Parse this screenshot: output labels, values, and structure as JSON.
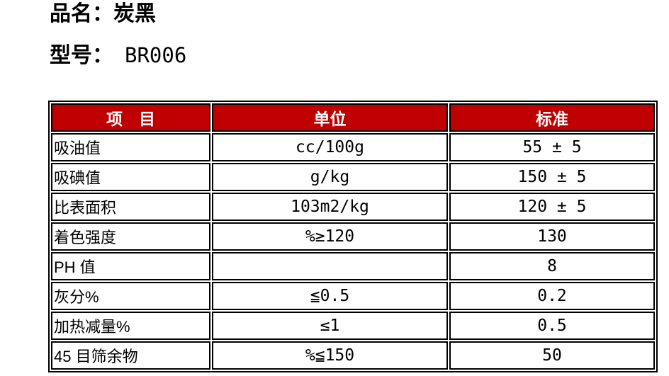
{
  "page": {
    "product_label": "品名：",
    "product_value": "炭黑",
    "model_label": "型号：",
    "model_value": "BR006"
  },
  "table": {
    "colors": {
      "header_bg": "#c00000",
      "header_text": "#ffffff",
      "border": "#000000"
    },
    "headers": [
      "项　目",
      "单位",
      "标准"
    ],
    "rows": [
      {
        "item": "吸油值",
        "unit": "cc/100g",
        "standard": "55 ± 5"
      },
      {
        "item": "吸碘值",
        "unit": "g/kg",
        "standard": "150 ± 5"
      },
      {
        "item": "比表面积",
        "unit": "103m2/kg",
        "standard": "120 ± 5"
      },
      {
        "item": "着色强度",
        "unit": "%≥120",
        "standard": "130"
      },
      {
        "item": "PH 值",
        "unit": "",
        "standard": "8"
      },
      {
        "item": "灰分%",
        "unit": "≦0.5",
        "standard": "0.2"
      },
      {
        "item": "加热减量%",
        "unit": "≤1",
        "standard": "0.5"
      },
      {
        "item": "45 目筛余物",
        "unit": "%≦150",
        "standard": "50"
      }
    ]
  }
}
